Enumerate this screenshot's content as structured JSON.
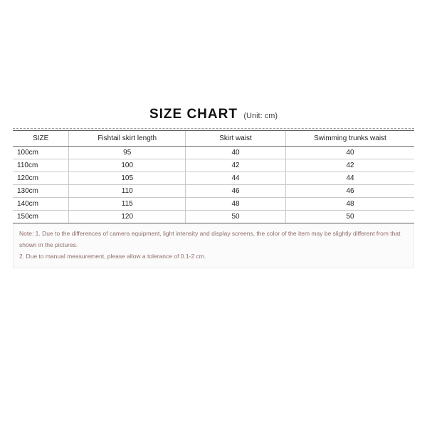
{
  "title": {
    "main": "SIZE CHART",
    "unit": "(Unit: cm)"
  },
  "table": {
    "type": "table",
    "border_color": "#5d5d5d",
    "grid_color": "#c9c9c9",
    "header_fontsize": 10,
    "cell_fontsize": 10,
    "col_widths_pct": [
      14,
      29,
      25,
      32
    ],
    "columns": [
      "SIZE",
      "Fishtail skirt length",
      "Skirt waist",
      "Swimming trunks waist"
    ],
    "rows": [
      [
        "100cm",
        "95",
        "40",
        "40"
      ],
      [
        "110cm",
        "100",
        "42",
        "42"
      ],
      [
        "120cm",
        "105",
        "44",
        "44"
      ],
      [
        "130cm",
        "110",
        "46",
        "46"
      ],
      [
        "140cm",
        "115",
        "48",
        "48"
      ],
      [
        "150cm",
        "120",
        "50",
        "50"
      ]
    ]
  },
  "notes": {
    "text_color": "#8f6e6a",
    "background_color": "#fbfbfb",
    "fontsize": 8.5,
    "items": [
      "Note: 1. Due to the differences of camera equipment, light intensity and display screens, the color of the item may be slightly different from that shown in the pictures.",
      "2. Due to manual measurement, please allow a tolerance of 0.1-2 cm."
    ]
  },
  "styling": {
    "page_bg": "#ffffff",
    "title_fontsize": 19,
    "title_color": "#111111",
    "unit_fontsize": 11,
    "unit_color": "#444444",
    "dashed_color": "#9a9a9a"
  }
}
